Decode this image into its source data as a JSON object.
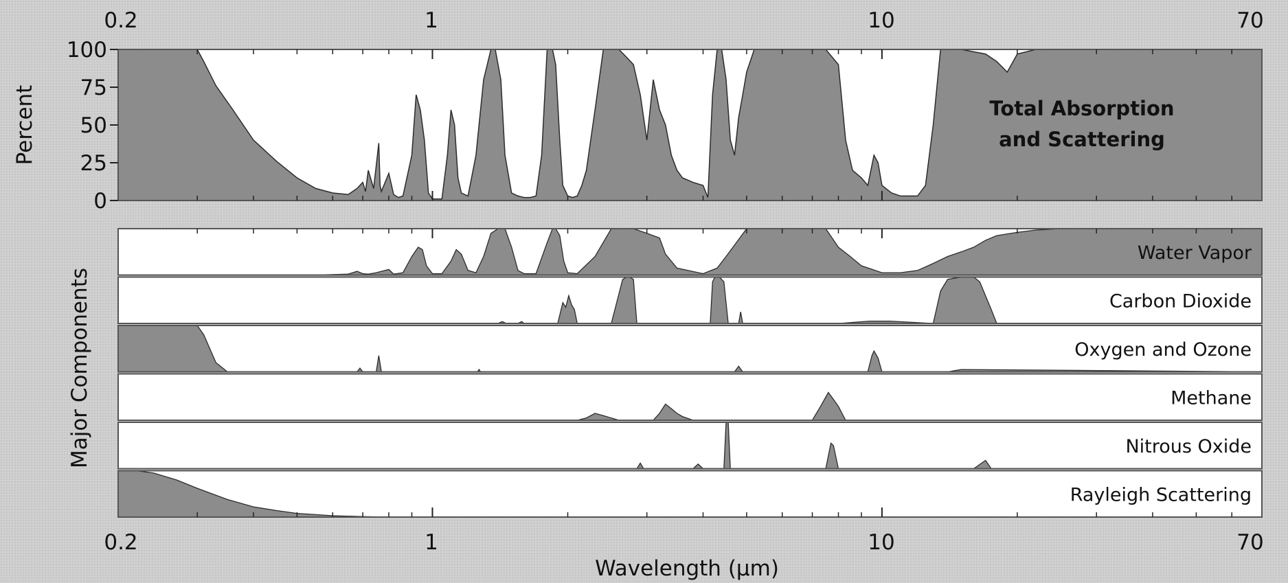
{
  "chart_data": {
    "type": "area",
    "x_scale": "log",
    "xlim": [
      0.2,
      70
    ],
    "xlabel": "Wavelength (μm)",
    "x_ticks_top": [
      {
        "value": 0.2,
        "label": "0.2"
      },
      {
        "value": 1,
        "label": "1"
      },
      {
        "value": 10,
        "label": "10"
      },
      {
        "value": 70,
        "label": "70"
      }
    ],
    "x_ticks_bottom": [
      {
        "value": 0.2,
        "label": "0.2"
      },
      {
        "value": 1,
        "label": "1"
      },
      {
        "value": 10,
        "label": "10"
      },
      {
        "value": 70,
        "label": "70"
      }
    ],
    "top_panel": {
      "ylabel": "Percent",
      "ylim": [
        0,
        100
      ],
      "y_ticks": [
        {
          "value": 0,
          "label": "0"
        },
        {
          "value": 25,
          "label": "25"
        },
        {
          "value": 50,
          "label": "50"
        },
        {
          "value": 75,
          "label": "75"
        },
        {
          "value": 100,
          "label": "100"
        }
      ],
      "title_lines": [
        "Total Absorption",
        "and Scattering"
      ],
      "fill_color": "#8c8c8c",
      "series": [
        {
          "x": [
            0.2,
            0.3,
            0.31,
            0.33,
            0.36,
            0.4,
            0.45,
            0.5,
            0.55,
            0.6,
            0.65,
            0.68,
            0.7,
            0.71,
            0.72,
            0.74,
            0.76,
            0.765,
            0.77,
            0.8,
            0.82,
            0.84,
            0.86,
            0.9,
            0.92,
            0.94,
            0.96,
            0.98,
            1.0,
            1.05,
            1.08,
            1.1,
            1.12,
            1.14,
            1.16,
            1.2,
            1.25,
            1.3,
            1.35,
            1.38,
            1.42,
            1.45,
            1.5,
            1.55,
            1.6,
            1.65,
            1.7,
            1.75,
            1.8,
            1.85,
            1.88,
            1.92,
            1.95,
            2.0,
            2.05,
            2.1,
            2.15,
            2.2,
            2.3,
            2.4,
            2.5,
            2.6,
            2.7,
            2.8,
            2.9,
            3.0,
            3.1,
            3.2,
            3.3,
            3.4,
            3.5,
            3.6,
            3.8,
            4.0,
            4.1,
            4.2,
            4.3,
            4.4,
            4.5,
            4.6,
            4.7,
            4.8,
            4.9,
            5.0,
            5.2,
            5.5,
            6.0,
            6.5,
            7.0,
            7.5,
            8.0,
            8.3,
            8.6,
            9.0,
            9.3,
            9.6,
            9.8,
            10.0,
            10.5,
            11.0,
            12.0,
            12.5,
            13.0,
            13.5,
            14.0,
            15.0,
            17.0,
            18.0,
            19.0,
            20.0,
            22.0,
            25.0,
            30.0,
            40.0,
            70.0
          ],
          "y": [
            100,
            100,
            92,
            76,
            60,
            40,
            26,
            15,
            8,
            5,
            4,
            8,
            12,
            6,
            20,
            8,
            38,
            10,
            6,
            18,
            4,
            2,
            3,
            30,
            70,
            60,
            40,
            5,
            1,
            1,
            30,
            60,
            50,
            15,
            5,
            3,
            30,
            80,
            100,
            100,
            80,
            30,
            5,
            3,
            2,
            2,
            3,
            30,
            100,
            100,
            90,
            40,
            10,
            3,
            2,
            3,
            10,
            20,
            60,
            100,
            100,
            100,
            95,
            90,
            70,
            40,
            80,
            60,
            50,
            30,
            20,
            15,
            12,
            10,
            2,
            70,
            100,
            100,
            80,
            40,
            30,
            55,
            70,
            85,
            100,
            100,
            100,
            100,
            100,
            100,
            90,
            40,
            20,
            15,
            10,
            30,
            25,
            10,
            5,
            3,
            3,
            10,
            50,
            100,
            100,
            100,
            97,
            92,
            85,
            97,
            100,
            100,
            100,
            100,
            100
          ]
        }
      ]
    },
    "components_panel": {
      "ylabel": "Major Components",
      "fill_color": "#8c8c8c",
      "series": [
        {
          "name": "Water Vapor",
          "x": [
            0.2,
            0.55,
            0.65,
            0.68,
            0.7,
            0.72,
            0.75,
            0.8,
            0.82,
            0.86,
            0.9,
            0.93,
            0.95,
            0.97,
            1.0,
            1.05,
            1.1,
            1.13,
            1.16,
            1.2,
            1.25,
            1.3,
            1.35,
            1.4,
            1.45,
            1.5,
            1.55,
            1.6,
            1.7,
            1.8,
            1.85,
            1.88,
            1.92,
            1.96,
            2.0,
            2.1,
            2.3,
            2.5,
            2.7,
            2.8,
            3.0,
            3.2,
            3.3,
            3.5,
            3.7,
            4.0,
            4.3,
            4.5,
            5.0,
            5.5,
            6.0,
            6.5,
            7.0,
            7.5,
            8.0,
            8.5,
            9.0,
            10.0,
            11.0,
            12.0,
            13.0,
            14.0,
            15.0,
            16.0,
            17.0,
            18.0,
            20.0,
            22.0,
            25.0,
            70.0
          ],
          "y": [
            0,
            0,
            2,
            8,
            3,
            2,
            5,
            12,
            2,
            5,
            40,
            60,
            55,
            20,
            3,
            3,
            30,
            55,
            45,
            10,
            5,
            40,
            90,
            100,
            100,
            60,
            10,
            3,
            3,
            70,
            100,
            100,
            85,
            30,
            5,
            3,
            40,
            100,
            100,
            100,
            90,
            80,
            45,
            15,
            10,
            3,
            15,
            40,
            100,
            100,
            100,
            100,
            100,
            100,
            60,
            40,
            20,
            5,
            5,
            10,
            25,
            40,
            50,
            60,
            75,
            85,
            92,
            97,
            100,
            100
          ]
        },
        {
          "name": "Carbon Dioxide",
          "x": [
            0.2,
            1.4,
            1.43,
            1.46,
            1.55,
            1.58,
            1.6,
            1.9,
            1.95,
            1.98,
            2.01,
            2.04,
            2.07,
            2.1,
            2.5,
            2.65,
            2.7,
            2.75,
            2.8,
            2.85,
            3.5,
            4.15,
            4.2,
            4.25,
            4.3,
            4.35,
            4.45,
            4.55,
            4.6,
            4.8,
            4.85,
            4.9,
            5.2,
            8.0,
            9.4,
            10.4,
            13.0,
            13.5,
            14.0,
            15.0,
            16.0,
            16.5,
            17.5,
            18.0,
            70.0
          ],
          "y": [
            0,
            0,
            4,
            0,
            0,
            4,
            0,
            0,
            45,
            35,
            60,
            40,
            30,
            0,
            0,
            95,
            100,
            100,
            95,
            0,
            0,
            0,
            90,
            100,
            100,
            100,
            90,
            0,
            0,
            0,
            25,
            0,
            0,
            0,
            5,
            5,
            0,
            70,
            95,
            100,
            100,
            90,
            30,
            0,
            0
          ]
        },
        {
          "name": "Oxygen and Ozone",
          "x": [
            0.2,
            0.3,
            0.31,
            0.33,
            0.35,
            0.6,
            0.68,
            0.69,
            0.7,
            0.75,
            0.76,
            0.77,
            0.8,
            1.26,
            1.27,
            1.28,
            4.7,
            4.8,
            4.9,
            9.3,
            9.5,
            9.6,
            9.8,
            10.0,
            14.0,
            15.0,
            70.0
          ],
          "y": [
            100,
            100,
            80,
            20,
            0,
            0,
            0,
            8,
            0,
            0,
            35,
            0,
            0,
            0,
            5,
            0,
            0,
            12,
            0,
            0,
            35,
            45,
            30,
            0,
            0,
            5,
            0
          ]
        },
        {
          "name": "Methane",
          "x": [
            0.2,
            2.1,
            2.2,
            2.3,
            2.4,
            2.6,
            3.1,
            3.2,
            3.3,
            3.4,
            3.5,
            3.6,
            3.8,
            7.0,
            7.3,
            7.6,
            7.8,
            8.0,
            8.3,
            70.0
          ],
          "y": [
            0,
            0,
            5,
            15,
            10,
            0,
            0,
            15,
            35,
            25,
            15,
            8,
            0,
            0,
            30,
            60,
            45,
            30,
            0,
            0
          ]
        },
        {
          "name": "Nitrous Oxide",
          "x": [
            0.2,
            2.85,
            2.9,
            2.95,
            3.8,
            3.9,
            4.0,
            4.45,
            4.5,
            4.55,
            4.6,
            7.5,
            7.7,
            7.8,
            8.0,
            16.0,
            17.0,
            17.5,
            70.0
          ],
          "y": [
            0,
            0,
            12,
            0,
            0,
            10,
            0,
            0,
            100,
            100,
            0,
            0,
            55,
            50,
            0,
            0,
            18,
            0,
            0
          ]
        },
        {
          "name": "Rayleigh Scattering",
          "x": [
            0.2,
            0.22,
            0.24,
            0.27,
            0.3,
            0.35,
            0.4,
            0.45,
            0.5,
            0.6,
            0.7,
            0.8,
            1.0,
            70.0
          ],
          "y": [
            100,
            100,
            95,
            80,
            62,
            38,
            22,
            14,
            8,
            3,
            1,
            0,
            0,
            0
          ]
        }
      ]
    }
  }
}
